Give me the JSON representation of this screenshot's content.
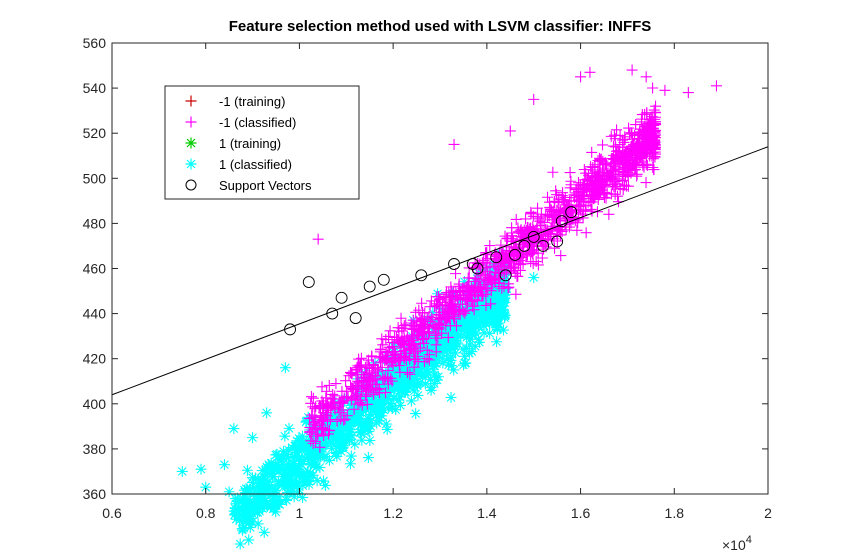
{
  "chart_data": {
    "type": "scatter",
    "title": "Feature selection method used with LSVM classifier: INFFS",
    "xlabel": "",
    "ylabel": "",
    "xlim": [
      0.6,
      2
    ],
    "ylim": [
      360,
      560
    ],
    "x_ticks": [
      0.6,
      0.8,
      1,
      1.2,
      1.4,
      1.6,
      1.8,
      2
    ],
    "y_ticks": [
      360,
      380,
      400,
      420,
      440,
      460,
      480,
      500,
      520,
      540,
      560
    ],
    "x_tick_labels": [
      "0.6",
      "0.8",
      "1",
      "1.2",
      "1.4",
      "1.6",
      "1.8",
      "2"
    ],
    "y_tick_labels": [
      "360",
      "380",
      "400",
      "420",
      "440",
      "460",
      "480",
      "500",
      "520",
      "540",
      "560"
    ],
    "x_exponent_label": "×10",
    "x_exponent_power": "4",
    "grid": false,
    "legend_position": "top-left",
    "decision_boundary": {
      "x": [
        0.6,
        2
      ],
      "y": [
        404,
        514
      ]
    },
    "series": [
      {
        "name": "-1 (training)",
        "marker": "+",
        "color": "#cc0000",
        "count": 0
      },
      {
        "name": "-1 (classified)",
        "marker": "+",
        "color": "#ff00ff",
        "cluster": {
          "slope": 176,
          "intercept": 210,
          "x_range": [
            1.02,
            1.76
          ],
          "spread": 6,
          "count": 1400
        },
        "outliers": [
          [
            1.04,
            473
          ],
          [
            1.33,
            515
          ],
          [
            1.45,
            521
          ],
          [
            1.5,
            535
          ],
          [
            1.6,
            545
          ],
          [
            1.62,
            547
          ],
          [
            1.71,
            548
          ],
          [
            1.74,
            545
          ],
          [
            1.78,
            539
          ],
          [
            1.83,
            538
          ],
          [
            1.89,
            541
          ],
          [
            1.76,
            532
          ],
          [
            1.73,
            525
          ]
        ]
      },
      {
        "name": "1 (training)",
        "marker": "*",
        "color": "#00cc00",
        "count": 0
      },
      {
        "name": "1 (classified)",
        "marker": "*",
        "color": "#00ffff",
        "cluster": {
          "slope": 176,
          "intercept": 198,
          "x_range": [
            0.86,
            1.44
          ],
          "spread": 7,
          "count": 1300
        },
        "outliers": [
          [
            0.75,
            370
          ],
          [
            0.79,
            371
          ],
          [
            0.8,
            363
          ],
          [
            0.85,
            361
          ],
          [
            0.84,
            373
          ],
          [
            0.86,
            389
          ],
          [
            0.9,
            385
          ],
          [
            0.93,
            396
          ],
          [
            0.97,
            416
          ],
          [
            1.5,
            456
          ]
        ]
      },
      {
        "name": "Support Vectors",
        "marker": "o",
        "color": "#000000",
        "points": [
          [
            0.98,
            433
          ],
          [
            1.02,
            454
          ],
          [
            1.09,
            447
          ],
          [
            1.07,
            440
          ],
          [
            1.15,
            452
          ],
          [
            1.18,
            455
          ],
          [
            1.26,
            457
          ],
          [
            1.33,
            462
          ],
          [
            1.37,
            462
          ],
          [
            1.42,
            465
          ],
          [
            1.46,
            466
          ],
          [
            1.48,
            470
          ],
          [
            1.5,
            474
          ],
          [
            1.52,
            470
          ],
          [
            1.55,
            472
          ],
          [
            1.56,
            481
          ],
          [
            1.58,
            485
          ],
          [
            1.44,
            457
          ],
          [
            1.38,
            460
          ],
          [
            1.12,
            438
          ]
        ]
      }
    ]
  }
}
